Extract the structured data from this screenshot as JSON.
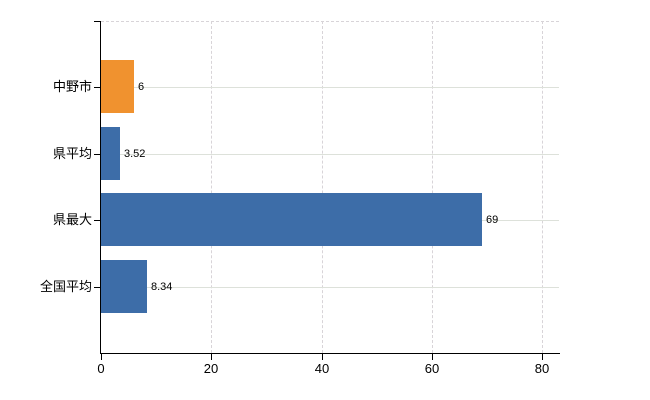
{
  "chart_data": {
    "type": "bar",
    "orientation": "horizontal",
    "title": "",
    "xlabel": "",
    "ylabel": "",
    "categories": [
      "中野市",
      "県平均",
      "県最大",
      "全国平均"
    ],
    "values": [
      6,
      3.52,
      69,
      8.34
    ],
    "value_labels": [
      "6",
      "3.52",
      "69",
      "8.34"
    ],
    "bar_colors": [
      "#f0922f",
      "#3d6da8",
      "#3d6da8",
      "#3d6da8"
    ],
    "highlight_color": "#f0922f",
    "base_color": "#3d6da8",
    "x_tick_labels": [
      "0",
      "20",
      "40",
      "60",
      "80"
    ],
    "x_tick_values": [
      0,
      20,
      40,
      60,
      80
    ],
    "xlim": [
      0,
      83
    ],
    "grid": "on",
    "legend": "none"
  },
  "colors": {
    "background": "#ffffff",
    "axis": "#000000",
    "grid_horizontal": "#dde1da",
    "grid_vertical_dashed": "#d8d4d8",
    "top_border_dashed": "#d8d4d8",
    "text": "#000000"
  }
}
